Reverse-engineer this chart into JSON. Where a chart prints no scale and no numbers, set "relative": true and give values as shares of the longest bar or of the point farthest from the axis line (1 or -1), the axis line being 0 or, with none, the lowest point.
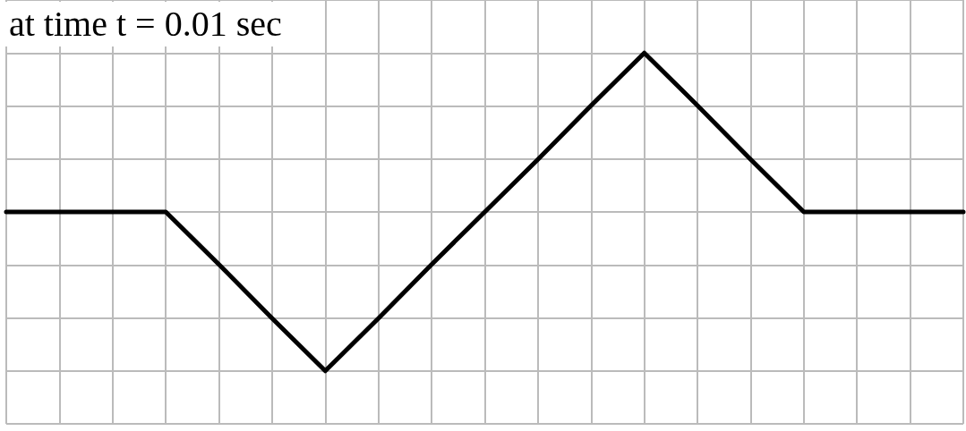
{
  "chart_data": {
    "type": "line",
    "relative": true,
    "categories": [
      null,
      null,
      null,
      null,
      null,
      null,
      null,
      null,
      null,
      null,
      null,
      null,
      null,
      null,
      null,
      null,
      null,
      null,
      null
    ],
    "series": [
      {
        "color": "#000000",
        "values": [
          0,
          0,
          0,
          0,
          -0.33,
          -0.67,
          -1,
          -0.67,
          -0.33,
          0,
          0.33,
          0.67,
          1,
          0.67,
          0.33,
          0,
          0,
          0,
          0
        ]
      }
    ],
    "annotations": [
      "at time t = 0.01 sec"
    ],
    "grid": true,
    "marker": "none",
    "line_style": "solid"
  }
}
